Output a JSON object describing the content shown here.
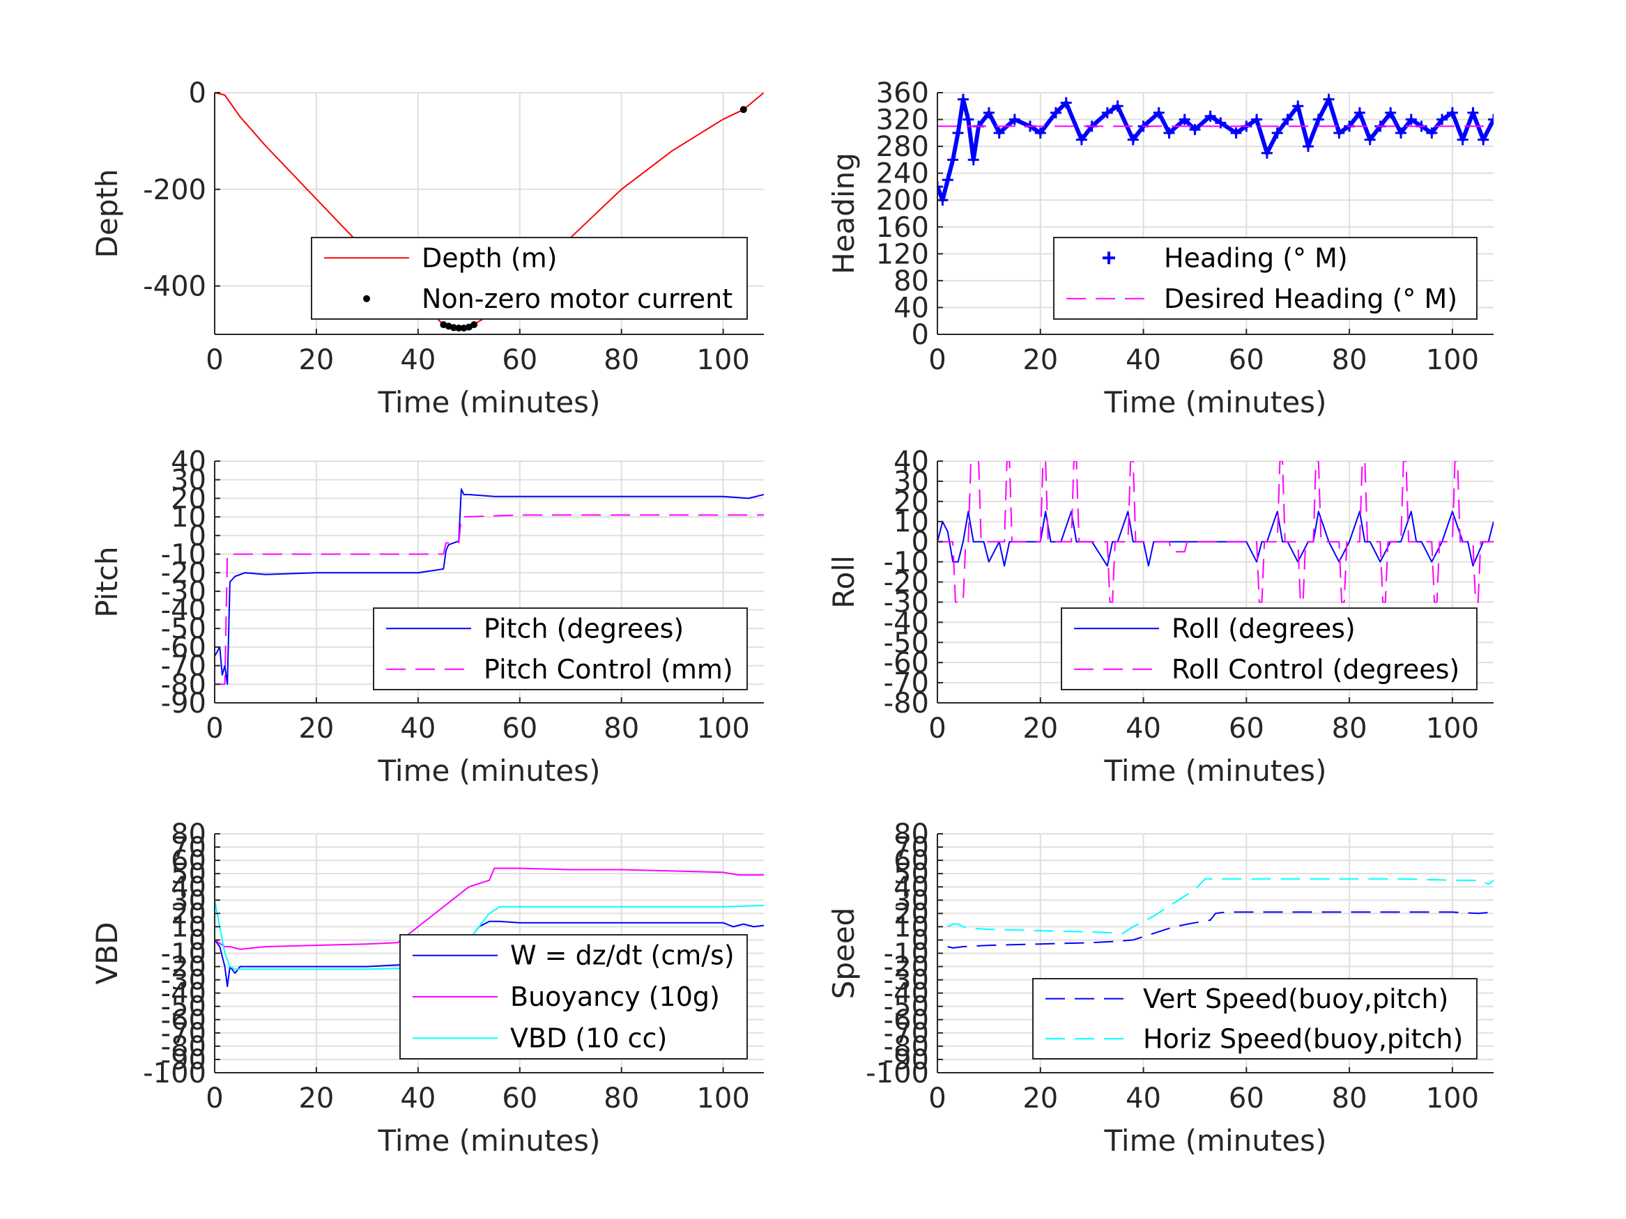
{
  "chart_data": [
    {
      "type": "line",
      "xlabel": "Time (minutes)",
      "ylabel": "Depth",
      "xlim": [
        0,
        108
      ],
      "ylim": [
        -500,
        0
      ],
      "xticks": [
        0,
        20,
        40,
        60,
        80,
        100
      ],
      "yticks": [
        -400,
        -200,
        0
      ],
      "ytick_labels": [
        "-400",
        "-200",
        "0"
      ],
      "grid": true,
      "legend": "bottom-right",
      "series": [
        {
          "name": "Depth (m)",
          "color": "#ff0000",
          "style": "solid",
          "x": [
            0,
            2,
            5,
            10,
            20,
            30,
            40,
            45,
            48,
            50,
            55,
            60,
            70,
            80,
            90,
            100,
            104,
            108
          ],
          "y": [
            0,
            -5,
            -50,
            -110,
            -220,
            -330,
            -430,
            -480,
            -487,
            -485,
            -455,
            -400,
            -300,
            -200,
            -120,
            -55,
            -35,
            0
          ]
        },
        {
          "name": "Non-zero motor current",
          "color": "#000000",
          "style": "dots",
          "x": [
            45,
            46,
            47,
            48,
            49,
            50,
            51,
            55,
            104
          ],
          "y": [
            -480,
            -483,
            -486,
            -487,
            -487,
            -485,
            -480,
            -450,
            -35
          ]
        }
      ]
    },
    {
      "type": "line",
      "xlabel": "Time (minutes)",
      "ylabel": "Heading",
      "xlim": [
        0,
        108
      ],
      "ylim": [
        0,
        360
      ],
      "xticks": [
        0,
        20,
        40,
        60,
        80,
        100
      ],
      "yticks": [
        0,
        40,
        80,
        120,
        160,
        200,
        240,
        280,
        320,
        360
      ],
      "ytick_labels": [
        "0",
        "40",
        "80",
        "120",
        "160",
        "200",
        "240",
        "280",
        "320",
        "360"
      ],
      "grid": true,
      "legend": "bottom-right",
      "series": [
        {
          "name": "Heading (° M)",
          "color": "#0000ff",
          "style": "plus",
          "x": [
            0,
            1,
            2,
            3,
            4,
            5,
            6,
            7,
            8,
            10,
            12,
            15,
            18,
            20,
            23,
            25,
            28,
            30,
            33,
            35,
            38,
            40,
            43,
            45,
            48,
            50,
            53,
            55,
            58,
            60,
            62,
            64,
            66,
            68,
            70,
            72,
            74,
            76,
            78,
            80,
            82,
            84,
            86,
            88,
            90,
            92,
            94,
            96,
            98,
            100,
            102,
            104,
            106,
            108
          ],
          "y": [
            220,
            200,
            230,
            260,
            300,
            350,
            320,
            260,
            310,
            330,
            300,
            320,
            310,
            300,
            330,
            345,
            290,
            310,
            330,
            340,
            290,
            310,
            330,
            300,
            320,
            305,
            325,
            315,
            300,
            310,
            320,
            270,
            300,
            320,
            340,
            280,
            320,
            350,
            300,
            310,
            330,
            290,
            310,
            330,
            300,
            320,
            310,
            300,
            320,
            330,
            290,
            330,
            290,
            320
          ]
        },
        {
          "name": "Desired Heading (° M)",
          "color": "#ff00ff",
          "style": "dashed",
          "x": [
            0,
            108
          ],
          "y": [
            310,
            310
          ]
        }
      ]
    },
    {
      "type": "line",
      "xlabel": "Time (minutes)",
      "ylabel": "Pitch",
      "xlim": [
        0,
        108
      ],
      "ylim": [
        -90,
        40
      ],
      "xticks": [
        0,
        20,
        40,
        60,
        80,
        100
      ],
      "yticks": [
        -90,
        -80,
        -70,
        -60,
        -50,
        -40,
        -30,
        -20,
        -10,
        0,
        10,
        20,
        30,
        40
      ],
      "ytick_labels": [
        "-90",
        "-80",
        "-70",
        "-60",
        "-50",
        "-40",
        "-30",
        "-20",
        "-10",
        "0",
        "10",
        "20",
        "30",
        "40"
      ],
      "grid": true,
      "legend": "bottom-right",
      "series": [
        {
          "name": "Pitch (degrees)",
          "color": "#0000ff",
          "style": "solid",
          "x": [
            0,
            1,
            1.5,
            2,
            2.5,
            3,
            4,
            6,
            10,
            20,
            30,
            40,
            45,
            45.5,
            46,
            47,
            48,
            48.5,
            49,
            50,
            55,
            60,
            70,
            80,
            90,
            100,
            105,
            108
          ],
          "y": [
            -65,
            -60,
            -75,
            -70,
            -80,
            -25,
            -22,
            -20,
            -21,
            -20,
            -20,
            -20,
            -18,
            -8,
            -5,
            -4,
            -3,
            25,
            22,
            22,
            21,
            21,
            21,
            21,
            21,
            21,
            20,
            22
          ]
        },
        {
          "name": "Pitch Control (mm)",
          "color": "#ff00ff",
          "style": "dashed",
          "x": [
            0,
            2,
            2.5,
            10,
            20,
            40,
            45,
            45.5,
            48,
            48.5,
            60,
            80,
            100,
            108
          ],
          "y": [
            -80,
            -80,
            -10,
            -10,
            -10,
            -10,
            -10,
            -4,
            -4,
            10,
            11,
            11,
            11,
            11
          ]
        }
      ]
    },
    {
      "type": "line",
      "xlabel": "Time (minutes)",
      "ylabel": "Roll",
      "xlim": [
        0,
        108
      ],
      "ylim": [
        -80,
        40
      ],
      "xticks": [
        0,
        20,
        40,
        60,
        80,
        100
      ],
      "yticks": [
        -80,
        -70,
        -60,
        -50,
        -40,
        -30,
        -20,
        -10,
        0,
        10,
        20,
        30,
        40
      ],
      "ytick_labels": [
        "-80",
        "-70",
        "-60",
        "-50",
        "-40",
        "-30",
        "-20",
        "-10",
        "0",
        "10",
        "20",
        "30",
        "40"
      ],
      "grid": true,
      "legend": "bottom-right",
      "series": [
        {
          "name": "Roll (degrees)",
          "color": "#0000ff",
          "style": "solid",
          "x": [
            0,
            1,
            2,
            3,
            4,
            5,
            6,
            7,
            8,
            9,
            10,
            12,
            13,
            14,
            16,
            20,
            21,
            22,
            24,
            26,
            27,
            28,
            30,
            33,
            34,
            35,
            37,
            38,
            39,
            40,
            41,
            42,
            45,
            48,
            50,
            60,
            62,
            63,
            64,
            66,
            67,
            68,
            70,
            72,
            73,
            74,
            76,
            78,
            80,
            82,
            83,
            84,
            86,
            88,
            90,
            92,
            93,
            94,
            96,
            98,
            100,
            102,
            103,
            104,
            106,
            107,
            108
          ],
          "y": [
            0,
            10,
            5,
            -10,
            -10,
            0,
            15,
            0,
            0,
            0,
            -10,
            0,
            -12,
            0,
            0,
            0,
            15,
            0,
            0,
            15,
            0,
            0,
            0,
            -12,
            0,
            0,
            15,
            0,
            0,
            0,
            -12,
            0,
            0,
            0,
            0,
            0,
            -10,
            0,
            0,
            15,
            0,
            0,
            -10,
            0,
            0,
            15,
            0,
            -10,
            0,
            15,
            0,
            0,
            -10,
            0,
            0,
            15,
            0,
            0,
            -10,
            0,
            15,
            0,
            0,
            -12,
            0,
            0,
            10
          ]
        },
        {
          "name": "Roll Control (degrees)",
          "color": "#ff00ff",
          "style": "dashed",
          "x": [
            0,
            3,
            3.5,
            5,
            5.5,
            6,
            6.5,
            8,
            8.5,
            13,
            13.5,
            14,
            14.5,
            20,
            20.5,
            21,
            21.5,
            26,
            26.5,
            27,
            27.5,
            33,
            33.5,
            34,
            34.5,
            37,
            37.5,
            38,
            38.5,
            45,
            45.5,
            48,
            48.5,
            60,
            62,
            62.5,
            63,
            63.5,
            66,
            66.5,
            67,
            67.5,
            70,
            70.5,
            71,
            71.5,
            73,
            73.5,
            74,
            74.5,
            78,
            78.5,
            79,
            79.5,
            82,
            82.5,
            83,
            83.5,
            86,
            86.5,
            87,
            87.5,
            90,
            90.5,
            91,
            91.5,
            96,
            96.5,
            97,
            97.5,
            100,
            100.5,
            101,
            101.5,
            104,
            104.5,
            105,
            105.5,
            108
          ],
          "y": [
            0,
            0,
            -30,
            -30,
            0,
            0,
            40,
            40,
            0,
            0,
            40,
            40,
            0,
            0,
            40,
            40,
            0,
            0,
            40,
            40,
            0,
            0,
            -30,
            -30,
            0,
            0,
            40,
            40,
            0,
            0,
            -5,
            -5,
            0,
            0,
            0,
            -30,
            -30,
            0,
            0,
            40,
            40,
            0,
            0,
            -30,
            -30,
            0,
            0,
            40,
            40,
            0,
            0,
            -30,
            -30,
            0,
            0,
            40,
            40,
            0,
            0,
            -30,
            -30,
            0,
            0,
            40,
            40,
            0,
            0,
            -30,
            -30,
            0,
            0,
            40,
            40,
            0,
            0,
            -30,
            -30,
            0,
            0
          ]
        }
      ]
    },
    {
      "type": "line",
      "xlabel": "Time (minutes)",
      "ylabel": "VBD",
      "xlim": [
        0,
        108
      ],
      "ylim": [
        -100,
        80
      ],
      "xticks": [
        0,
        20,
        40,
        60,
        80,
        100
      ],
      "yticks": [
        -100,
        -90,
        -80,
        -70,
        -60,
        -50,
        -40,
        -30,
        -20,
        -10,
        0,
        10,
        20,
        30,
        40,
        50,
        60,
        70,
        80
      ],
      "ytick_labels": [
        "-100",
        "-90",
        "-80",
        "-70",
        "-60",
        "-50",
        "-40",
        "-30",
        "-20",
        "-10",
        "0",
        "10",
        "20",
        "30",
        "40",
        "50",
        "60",
        "70",
        "80"
      ],
      "grid": true,
      "legend": "bottom-right",
      "series": [
        {
          "name": "W = dz/dt (cm/s)",
          "color": "#0000ff",
          "style": "solid",
          "x": [
            0,
            1,
            2,
            2.5,
            3,
            4,
            5,
            10,
            20,
            30,
            40,
            45,
            46,
            48,
            50,
            52,
            54,
            56,
            60,
            70,
            80,
            90,
            100,
            102,
            104,
            106,
            108
          ],
          "y": [
            0,
            -5,
            -20,
            -35,
            -20,
            -25,
            -20,
            -20,
            -20,
            -20,
            -18,
            -18,
            -15,
            -5,
            0,
            10,
            14,
            14,
            13,
            13,
            13,
            13,
            13,
            10,
            12,
            10,
            11
          ]
        },
        {
          "name": "Buoyancy (10g)",
          "color": "#ff00ff",
          "style": "solid",
          "x": [
            0,
            2,
            3,
            5,
            10,
            20,
            30,
            36,
            40,
            45,
            50,
            54,
            55,
            60,
            70,
            80,
            90,
            100,
            103,
            108
          ],
          "y": [
            0,
            -5,
            -5,
            -7,
            -5,
            -4,
            -3,
            -2,
            10,
            25,
            40,
            45,
            54,
            54,
            53,
            53,
            52,
            51,
            49,
            49
          ]
        },
        {
          "name": "VBD (10 cc)",
          "color": "#00ffff",
          "style": "solid",
          "x": [
            0,
            1,
            2,
            3,
            4,
            10,
            20,
            30,
            40,
            45,
            47,
            50,
            52,
            54,
            56,
            60,
            70,
            80,
            90,
            100,
            108
          ],
          "y": [
            30,
            10,
            -10,
            -20,
            -22,
            -22,
            -22,
            -22,
            -21,
            -21,
            -15,
            0,
            10,
            20,
            25,
            25,
            25,
            25,
            25,
            25,
            26
          ]
        }
      ]
    },
    {
      "type": "line",
      "xlabel": "Time (minutes)",
      "ylabel": "Speed",
      "xlim": [
        0,
        108
      ],
      "ylim": [
        -100,
        80
      ],
      "xticks": [
        0,
        20,
        40,
        60,
        80,
        100
      ],
      "yticks": [
        -100,
        -90,
        -80,
        -70,
        -60,
        -50,
        -40,
        -30,
        -20,
        -10,
        0,
        10,
        20,
        30,
        40,
        50,
        60,
        70,
        80
      ],
      "ytick_labels": [
        "-100",
        "-90",
        "-80",
        "-70",
        "-60",
        "-50",
        "-40",
        "-30",
        "-20",
        "-10",
        "0",
        "10",
        "20",
        "30",
        "40",
        "50",
        "60",
        "70",
        "80"
      ],
      "grid": true,
      "legend": "bottom-right",
      "series": [
        {
          "name": "Vert Speed(buoy,pitch)",
          "color": "#0000ff",
          "style": "dashed",
          "x": [
            2,
            3,
            5,
            10,
            20,
            30,
            35,
            38,
            42,
            46,
            50,
            53,
            54,
            56,
            60,
            70,
            80,
            90,
            100,
            105,
            108
          ],
          "y": [
            -5,
            -6,
            -5,
            -4,
            -3,
            -2,
            -1,
            0,
            5,
            10,
            13,
            15,
            20,
            21,
            21,
            21,
            21,
            21,
            21,
            20,
            21
          ]
        },
        {
          "name": "Horiz Speed(buoy,pitch)",
          "color": "#00ffff",
          "style": "dashed",
          "x": [
            2,
            3,
            4,
            5,
            6,
            10,
            20,
            30,
            36,
            38,
            42,
            46,
            50,
            52,
            60,
            70,
            80,
            90,
            100,
            104,
            106,
            107,
            108
          ],
          "y": [
            10,
            12,
            12,
            10,
            9,
            8,
            7,
            6,
            5,
            10,
            18,
            28,
            38,
            46,
            46,
            46,
            46,
            46,
            45,
            45,
            44,
            42,
            45
          ]
        }
      ]
    }
  ]
}
